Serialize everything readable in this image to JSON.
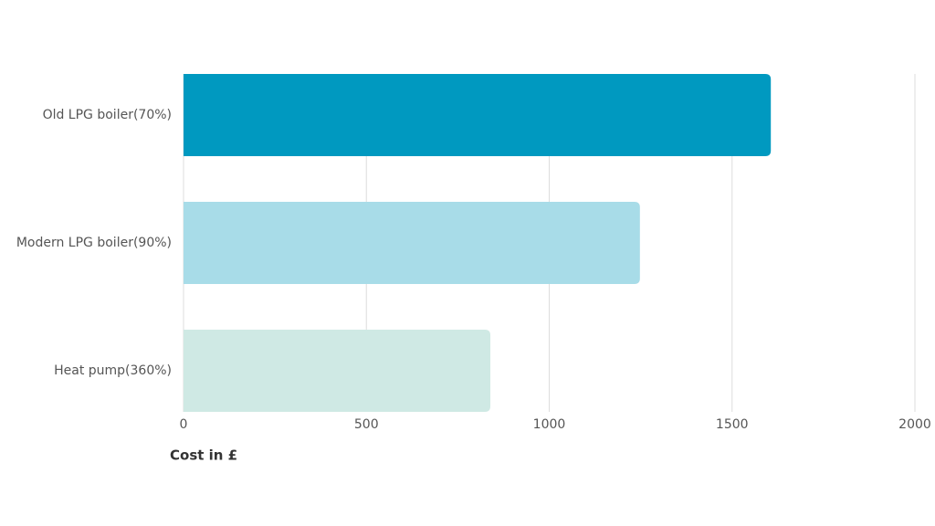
{
  "chart_data": {
    "type": "barh",
    "categories": [
      "Old LPG boiler(70%)",
      "Modern LPG boiler(90%)",
      "Heat pump(360%)"
    ],
    "values": [
      1606,
      1248,
      839
    ],
    "colors": [
      "#0099c0",
      "#a8dce8",
      "#cfe9e4"
    ],
    "xlim": [
      0,
      2000
    ],
    "xticks": [
      0,
      500,
      1000,
      1500,
      2000
    ],
    "xlabel": "Cost in £",
    "grid": true
  }
}
